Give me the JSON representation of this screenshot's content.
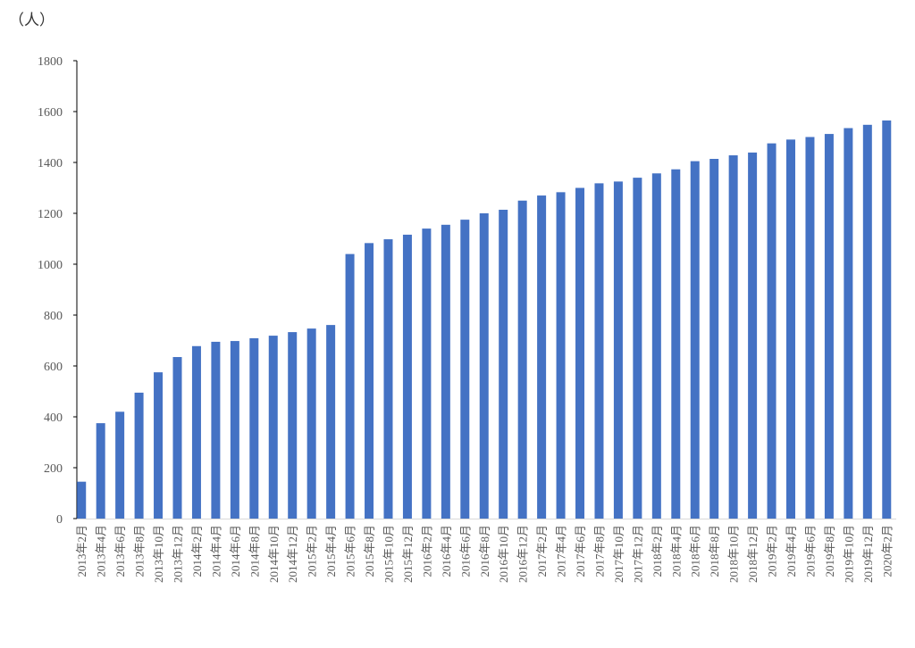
{
  "chart_data": {
    "type": "bar",
    "y_label": "（人）",
    "categories": [
      "2013年2月",
      "2013年4月",
      "2013年6月",
      "2013年8月",
      "2013年10月",
      "2013年12月",
      "2014年2月",
      "2014年4月",
      "2014年6月",
      "2014年8月",
      "2014年10月",
      "2014年12月",
      "2015年2月",
      "2015年4月",
      "2015年6月",
      "2015年8月",
      "2015年10月",
      "2015年12月",
      "2016年2月",
      "2016年4月",
      "2016年6月",
      "2016年8月",
      "2016年10月",
      "2016年12月",
      "2017年2月",
      "2017年4月",
      "2017年6月",
      "2017年8月",
      "2017年10月",
      "2017年12月",
      "2018年2月",
      "2018年4月",
      "2018年6月",
      "2018年8月",
      "2018年10月",
      "2018年12月",
      "2019年2月",
      "2019年4月",
      "2019年6月",
      "2019年8月",
      "2019年10月",
      "2019年12月",
      "2020年2月"
    ],
    "values": [
      145,
      375,
      420,
      495,
      575,
      635,
      678,
      695,
      698,
      709,
      719,
      733,
      747,
      761,
      1040,
      1083,
      1098,
      1116,
      1140,
      1155,
      1175,
      1200,
      1214,
      1250,
      1270,
      1283,
      1300,
      1318,
      1325,
      1340,
      1357,
      1373,
      1405,
      1414,
      1428,
      1439,
      1475,
      1490,
      1500,
      1512,
      1535,
      1548,
      1565
    ],
    "color": "#4472c4",
    "ylim": [
      0,
      1800
    ],
    "yticks": [
      0,
      200,
      400,
      600,
      800,
      1000,
      1200,
      1400,
      1600,
      1800
    ],
    "grid": false
  }
}
